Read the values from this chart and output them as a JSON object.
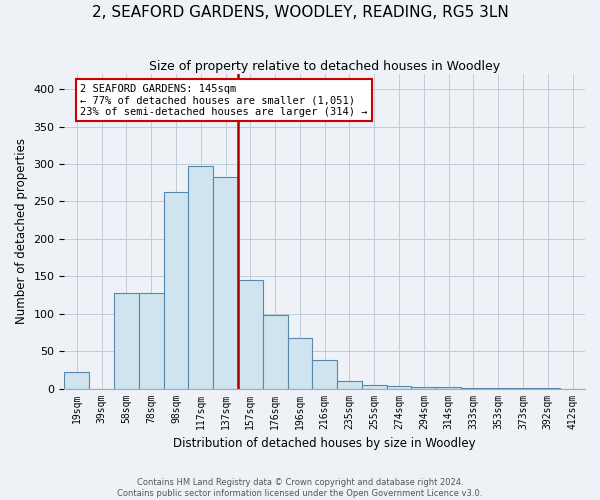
{
  "title": "2, SEAFORD GARDENS, WOODLEY, READING, RG5 3LN",
  "subtitle": "Size of property relative to detached houses in Woodley",
  "xlabel": "Distribution of detached houses by size in Woodley",
  "ylabel": "Number of detached properties",
  "bar_labels": [
    "19sqm",
    "39sqm",
    "58sqm",
    "78sqm",
    "98sqm",
    "117sqm",
    "137sqm",
    "157sqm",
    "176sqm",
    "196sqm",
    "216sqm",
    "235sqm",
    "255sqm",
    "274sqm",
    "294sqm",
    "314sqm",
    "333sqm",
    "353sqm",
    "373sqm",
    "392sqm",
    "412sqm"
  ],
  "bar_values": [
    22,
    0,
    128,
    128,
    263,
    297,
    283,
    145,
    98,
    68,
    38,
    10,
    5,
    3,
    2,
    2,
    1,
    1,
    1,
    1,
    0
  ],
  "bar_color": "#d0e4f0",
  "bar_edge_color": "#5588aa",
  "vline_color": "#aa0000",
  "annotation_title": "2 SEAFORD GARDENS: 145sqm",
  "annotation_line1": "← 77% of detached houses are smaller (1,051)",
  "annotation_line2": "23% of semi-detached houses are larger (314) →",
  "annotation_box_color": "#ffffff",
  "annotation_box_edge": "#cc0000",
  "ylim": [
    0,
    420
  ],
  "yticks": [
    0,
    50,
    100,
    150,
    200,
    250,
    300,
    350,
    400
  ],
  "footer_line1": "Contains HM Land Registry data © Crown copyright and database right 2024.",
  "footer_line2": "Contains public sector information licensed under the Open Government Licence v3.0.",
  "bg_color": "#eef2f7",
  "plot_bg_color": "#eef2f7",
  "grid_color": "#c0ccd8"
}
